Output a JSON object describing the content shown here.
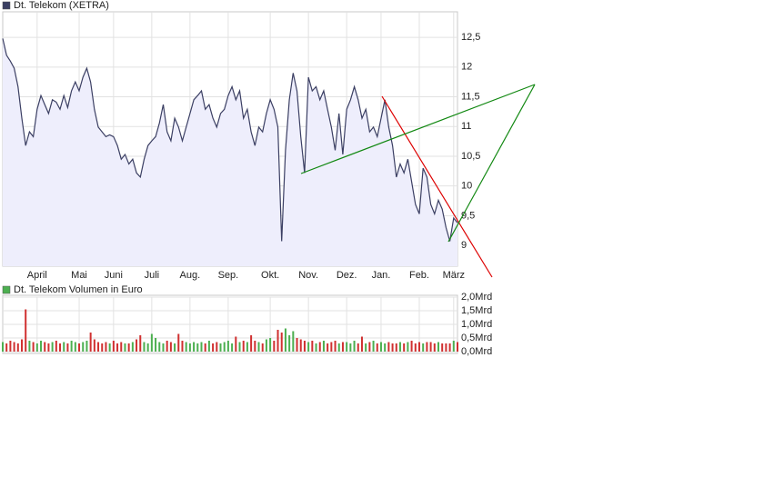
{
  "chart_data": [
    {
      "type": "line",
      "series": [
        {
          "name": "Dt. Telekom (XETRA)",
          "color": "#3b3f63",
          "values": [
            12.48,
            12.2,
            12.1,
            11.98,
            11.67,
            11.14,
            10.68,
            10.91,
            10.83,
            11.29,
            11.52,
            11.37,
            11.22,
            11.45,
            11.41,
            11.29,
            11.52,
            11.32,
            11.6,
            11.75,
            11.6,
            11.83,
            11.98,
            11.75,
            11.29,
            10.99,
            10.91,
            10.83,
            10.86,
            10.83,
            10.68,
            10.45,
            10.53,
            10.37,
            10.45,
            10.22,
            10.15,
            10.45,
            10.68,
            10.76,
            10.83,
            11.06,
            11.37,
            10.91,
            10.76,
            11.14,
            10.99,
            10.76,
            10.99,
            11.22,
            11.45,
            11.52,
            11.6,
            11.29,
            11.37,
            11.14,
            10.99,
            11.22,
            11.29,
            11.52,
            11.67,
            11.45,
            11.6,
            11.14,
            11.29,
            10.91,
            10.68,
            10.99,
            10.91,
            11.22,
            11.45,
            11.29,
            10.99,
            9.07,
            10.6,
            11.45,
            11.9,
            11.6,
            10.83,
            10.22,
            11.83,
            11.6,
            11.67,
            11.45,
            11.6,
            11.29,
            10.99,
            10.6,
            11.22,
            10.53,
            11.29,
            11.45,
            11.67,
            11.45,
            11.14,
            11.29,
            10.91,
            10.99,
            10.83,
            11.14,
            11.45,
            10.99,
            10.68,
            10.15,
            10.37,
            10.22,
            10.45,
            10.07,
            9.69,
            9.53,
            10.3,
            10.15,
            9.69,
            9.53,
            9.76,
            9.61,
            9.3,
            9.07,
            9.46,
            9.38
          ]
        }
      ],
      "categories": [
        null,
        null,
        null,
        null,
        null,
        null,
        null,
        null,
        null,
        "April",
        null,
        null,
        null,
        null,
        null,
        null,
        null,
        null,
        null,
        null,
        "Mai",
        null,
        null,
        null,
        null,
        null,
        null,
        null,
        null,
        "Juni",
        null,
        null,
        null,
        null,
        null,
        null,
        null,
        null,
        null,
        "Juli",
        null,
        null,
        null,
        null,
        null,
        null,
        null,
        null,
        null,
        "Aug.",
        null,
        null,
        null,
        null,
        null,
        null,
        null,
        null,
        null,
        "Sep.",
        null,
        null,
        null,
        null,
        null,
        null,
        null,
        null,
        null,
        null,
        "Okt.",
        null,
        null,
        null,
        null,
        null,
        null,
        null,
        null,
        null,
        "Nov.",
        null,
        null,
        null,
        null,
        null,
        null,
        null,
        null,
        null,
        "Dez.",
        null,
        null,
        null,
        null,
        null,
        null,
        null,
        null,
        "Jan.",
        null,
        null,
        null,
        null,
        null,
        null,
        null,
        null,
        null,
        "Feb.",
        null,
        null,
        null,
        null,
        null,
        null,
        null,
        null,
        "März",
        null
      ],
      "ylim": [
        8.65,
        12.93
      ],
      "yticks": [
        9,
        {
          "value": 9.5,
          "label": "9,5"
        },
        10,
        {
          "value": 10.5,
          "label": "10,5"
        },
        11,
        {
          "value": 11.5,
          "label": "11,5"
        },
        12,
        {
          "value": 12.5,
          "label": "12,5"
        }
      ],
      "grid": true,
      "fill": "#eeeefc"
    },
    {
      "type": "bar",
      "series": [
        {
          "name": "Dt. Telekom Volumen in Euro",
          "color": "#4caf50",
          "values": [
            0.35,
            0.3,
            0.4,
            0.35,
            0.3,
            0.45,
            1.55,
            0.4,
            0.35,
            0.3,
            0.4,
            0.35,
            0.3,
            0.35,
            0.4,
            0.3,
            0.35,
            0.3,
            0.4,
            0.35,
            0.3,
            0.35,
            0.4,
            0.7,
            0.45,
            0.35,
            0.3,
            0.35,
            0.3,
            0.4,
            0.3,
            0.35,
            0.3,
            0.3,
            0.35,
            0.45,
            0.6,
            0.35,
            0.3,
            0.65,
            0.5,
            0.35,
            0.3,
            0.4,
            0.35,
            0.3,
            0.65,
            0.4,
            0.35,
            0.3,
            0.35,
            0.3,
            0.35,
            0.3,
            0.4,
            0.3,
            0.35,
            0.3,
            0.35,
            0.4,
            0.3,
            0.55,
            0.35,
            0.4,
            0.35,
            0.6,
            0.4,
            0.35,
            0.3,
            0.45,
            0.5,
            0.4,
            0.8,
            0.7,
            0.85,
            0.6,
            0.75,
            0.5,
            0.45,
            0.4,
            0.35,
            0.4,
            0.3,
            0.35,
            0.4,
            0.3,
            0.35,
            0.4,
            0.3,
            0.35,
            0.35,
            0.3,
            0.4,
            0.3,
            0.55,
            0.3,
            0.35,
            0.4,
            0.3,
            0.35,
            0.3,
            0.35,
            0.3,
            0.3,
            0.35,
            0.3,
            0.35,
            0.4,
            0.3,
            0.35,
            0.3,
            0.35,
            0.35,
            0.3,
            0.35,
            0.3,
            0.3,
            0.3,
            0.4,
            0.35
          ]
        }
      ],
      "down_color": "#d03030",
      "ylim": [
        0,
        2.0
      ],
      "yticks": [
        {
          "value": 0,
          "label": "0,0Mrd"
        },
        {
          "value": 0.5,
          "label": "0,5Mrd"
        },
        {
          "value": 1.0,
          "label": "1,0Mrd"
        },
        {
          "value": 1.5,
          "label": "1,5Mrd"
        },
        {
          "value": 2.0,
          "label": "2,0Mrd"
        }
      ],
      "grid": true
    }
  ]
}
